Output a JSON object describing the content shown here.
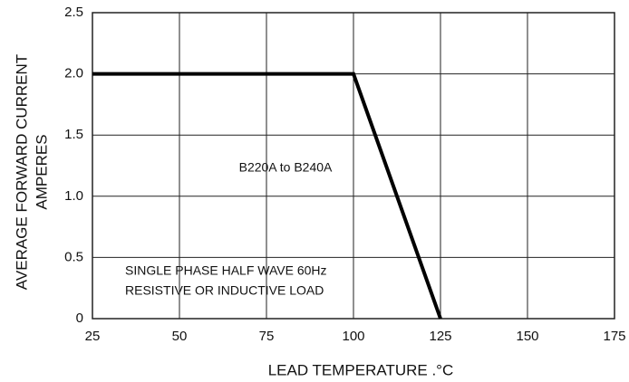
{
  "chart_data": {
    "type": "line",
    "ylabel": [
      "AVERAGE FORWARD CURRENT",
      "AMPERES"
    ],
    "xlabel": "LEAD TEMPERATURE .°C",
    "annotations": [
      "B220A to B240A",
      "SINGLE PHASE HALF WAVE 60Hz",
      "RESISTIVE OR INDUCTIVE LOAD"
    ],
    "x": [
      25,
      100,
      125
    ],
    "series": [
      {
        "color": "#000000",
        "values": [
          2,
          2,
          0
        ]
      }
    ],
    "xlim": [
      25,
      175
    ],
    "xticks": [
      25,
      50,
      75,
      100,
      125,
      150,
      175
    ],
    "ylim": [
      0,
      2.5
    ],
    "yticks": [
      0,
      0.5,
      {
        "value": 1,
        "label": "1.0"
      },
      1.5,
      {
        "value": 2,
        "label": "2.0"
      },
      2.5
    ],
    "grid": true
  }
}
